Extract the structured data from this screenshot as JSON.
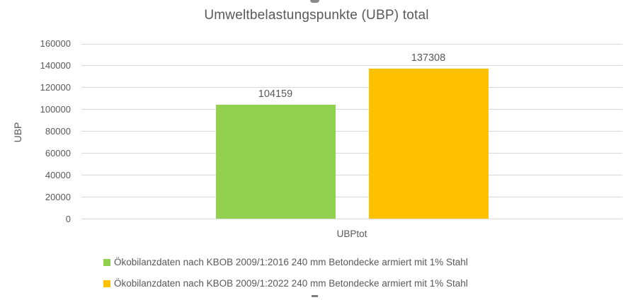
{
  "chart_data": {
    "type": "bar",
    "title": "Umweltbelastungspunkte (UBP) total",
    "ylabel": "UBP",
    "xlabel": "",
    "categories": [
      "UBPtot"
    ],
    "series": [
      {
        "name": "Ökobilanzdaten nach KBOB 2009/1:2016 240 mm Betondecke armiert mit 1% Stahl",
        "values": [
          104159
        ],
        "color": "#92D050"
      },
      {
        "name": "Ökobilanzdaten nach KBOB 2009/1:2022 240 mm Betondecke armiert mit 1% Stahl",
        "values": [
          137308
        ],
        "color": "#FFC000"
      }
    ],
    "ylim": [
      0,
      160000
    ],
    "yticks": [
      0,
      20000,
      40000,
      60000,
      80000,
      100000,
      120000,
      140000,
      160000
    ],
    "grid": true,
    "legend_position": "bottom-left"
  },
  "colors": {
    "text": "#595959",
    "gridline": "#D9D9D9",
    "background": "#FFFFFF"
  }
}
